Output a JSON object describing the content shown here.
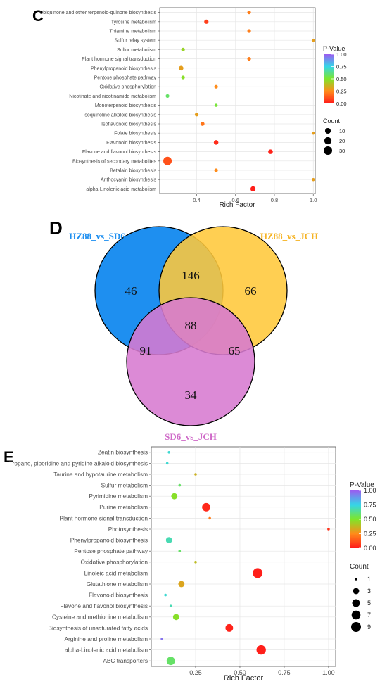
{
  "chart_data": [
    {
      "panel": "C",
      "type": "scatter",
      "xlabel": "Rich Factor",
      "xticks": [
        0.4,
        0.6,
        0.8,
        1.0
      ],
      "xtick_labels": [
        "0.4",
        "0.6",
        "0.8",
        "1.0"
      ],
      "xlim": [
        0.21,
        1.01
      ],
      "grid": true,
      "categories": [
        "Ubiquinone and other terpenoid-quinone biosynthesis",
        "Tyrosine metabolism",
        "Thiamine metabolism",
        "Sulfur relay system",
        "Sulfur metabolism",
        "Plant hormone signal transduction",
        "Phenylpropanoid biosynthesis",
        "Pentose phosphate pathway",
        "Oxidative phosphorylation",
        "Nicotinate and nicotinamide metabolism",
        "Monoterpenoid biosynthesis",
        "Isoquinoline alkaloid biosynthesis",
        "Isoflavonoid biosynthesis",
        "Folate biosynthesis",
        "Flavonoid biosynthesis",
        "Flavone and flavonol biosynthesis",
        "Biosynthesis of secondary metabolites",
        "Betalain biosynthesis",
        "Anthocyanin biosynthesis",
        "alpha-Linolenic acid metabolism"
      ],
      "points": [
        {
          "x": 0.67,
          "p": 0.22,
          "count": 2
        },
        {
          "x": 0.45,
          "p": 0.08,
          "count": 4
        },
        {
          "x": 0.67,
          "p": 0.22,
          "count": 2
        },
        {
          "x": 1.0,
          "p": 0.3,
          "count": 1
        },
        {
          "x": 0.33,
          "p": 0.45,
          "count": 2
        },
        {
          "x": 0.67,
          "p": 0.22,
          "count": 2
        },
        {
          "x": 0.32,
          "p": 0.3,
          "count": 5
        },
        {
          "x": 0.33,
          "p": 0.48,
          "count": 2
        },
        {
          "x": 0.5,
          "p": 0.25,
          "count": 2
        },
        {
          "x": 0.25,
          "p": 0.58,
          "count": 2
        },
        {
          "x": 0.5,
          "p": 0.52,
          "count": 1
        },
        {
          "x": 0.4,
          "p": 0.3,
          "count": 2
        },
        {
          "x": 0.43,
          "p": 0.2,
          "count": 3
        },
        {
          "x": 1.0,
          "p": 0.3,
          "count": 1
        },
        {
          "x": 0.5,
          "p": 0.04,
          "count": 5
        },
        {
          "x": 0.78,
          "p": 0.02,
          "count": 5
        },
        {
          "x": 0.25,
          "p": 0.12,
          "count": 30
        },
        {
          "x": 0.5,
          "p": 0.25,
          "count": 2
        },
        {
          "x": 1.0,
          "p": 0.3,
          "count": 1
        },
        {
          "x": 0.69,
          "p": 0.01,
          "count": 7
        }
      ],
      "color_legend": {
        "title": "P-Value",
        "ticks": [
          "1.00",
          "0.75",
          "0.50",
          "0.25",
          "0.00"
        ]
      },
      "size_legend": {
        "title": "Count",
        "values": [
          10,
          20,
          30
        ],
        "labels": [
          "10",
          "20",
          "30"
        ]
      }
    },
    {
      "panel": "D",
      "type": "venn",
      "sets": [
        {
          "name": "HZ88_vs_SD6",
          "color": "#1e8ff0"
        },
        {
          "name": "HZ88_vs_JCH",
          "color": "#ffc83a"
        },
        {
          "name": "SD6_vs_JCH",
          "color": "#d77ad0"
        }
      ],
      "regions": {
        "only_A": "46",
        "only_B": "66",
        "only_C": "34",
        "A_B": "146",
        "A_C": "91",
        "B_C": "65",
        "A_B_C": "88"
      }
    },
    {
      "panel": "E",
      "type": "scatter",
      "xlabel": "Rich Factor",
      "xticks": [
        0.25,
        0.5,
        0.75,
        1.0
      ],
      "xtick_labels": [
        "0.25",
        "0.50",
        "0.75",
        "1.00"
      ],
      "xlim": [
        0.0,
        1.04
      ],
      "grid": true,
      "categories": [
        "Zeatin biosynthesis",
        "Tropane, piperidine and pyridine alkaloid biosynthesis",
        "Taurine and hypotaurine metabolism",
        "Sulfur metabolism",
        "Pyrimidine metabolism",
        "Purine metabolism",
        "Plant hormone signal transduction",
        "Photosynthesis",
        "Phenylpropanoid biosynthesis",
        "Pentose phosphate pathway",
        "Oxidative phosphorylation",
        "Linoleic acid metabolism",
        "Glutathione metabolism",
        "Flavonoid biosynthesis",
        "Flavone and flavonol biosynthesis",
        "Cysteine and methionine metabolism",
        "Biosynthesis of unsaturated fatty acids",
        "Arginine and proline metabolism",
        "alpha-Linolenic acid metabolism",
        "ABC transporters"
      ],
      "points": [
        {
          "x": 0.1,
          "p": 0.72,
          "count": 1
        },
        {
          "x": 0.09,
          "p": 0.72,
          "count": 1
        },
        {
          "x": 0.25,
          "p": 0.35,
          "count": 1
        },
        {
          "x": 0.16,
          "p": 0.58,
          "count": 1
        },
        {
          "x": 0.13,
          "p": 0.48,
          "count": 3
        },
        {
          "x": 0.31,
          "p": 0.03,
          "count": 6
        },
        {
          "x": 0.33,
          "p": 0.22,
          "count": 1
        },
        {
          "x": 1.0,
          "p": 0.05,
          "count": 1
        },
        {
          "x": 0.1,
          "p": 0.68,
          "count": 3
        },
        {
          "x": 0.16,
          "p": 0.58,
          "count": 1
        },
        {
          "x": 0.25,
          "p": 0.38,
          "count": 1
        },
        {
          "x": 0.6,
          "p": 0.01,
          "count": 9
        },
        {
          "x": 0.17,
          "p": 0.32,
          "count": 3
        },
        {
          "x": 0.08,
          "p": 0.72,
          "count": 1
        },
        {
          "x": 0.11,
          "p": 0.68,
          "count": 1
        },
        {
          "x": 0.14,
          "p": 0.48,
          "count": 3
        },
        {
          "x": 0.44,
          "p": 0.02,
          "count": 5
        },
        {
          "x": 0.06,
          "p": 0.95,
          "count": 1
        },
        {
          "x": 0.62,
          "p": 0.01,
          "count": 8
        },
        {
          "x": 0.11,
          "p": 0.58,
          "count": 6
        }
      ],
      "color_legend": {
        "title": "P-Value",
        "ticks": [
          "1.00",
          "0.75",
          "0.50",
          "0.25",
          "0.00"
        ]
      },
      "size_legend": {
        "title": "Count",
        "values": [
          1,
          3,
          5,
          7,
          9
        ],
        "labels": [
          "1",
          "3",
          "5",
          "7",
          "9"
        ]
      }
    }
  ]
}
